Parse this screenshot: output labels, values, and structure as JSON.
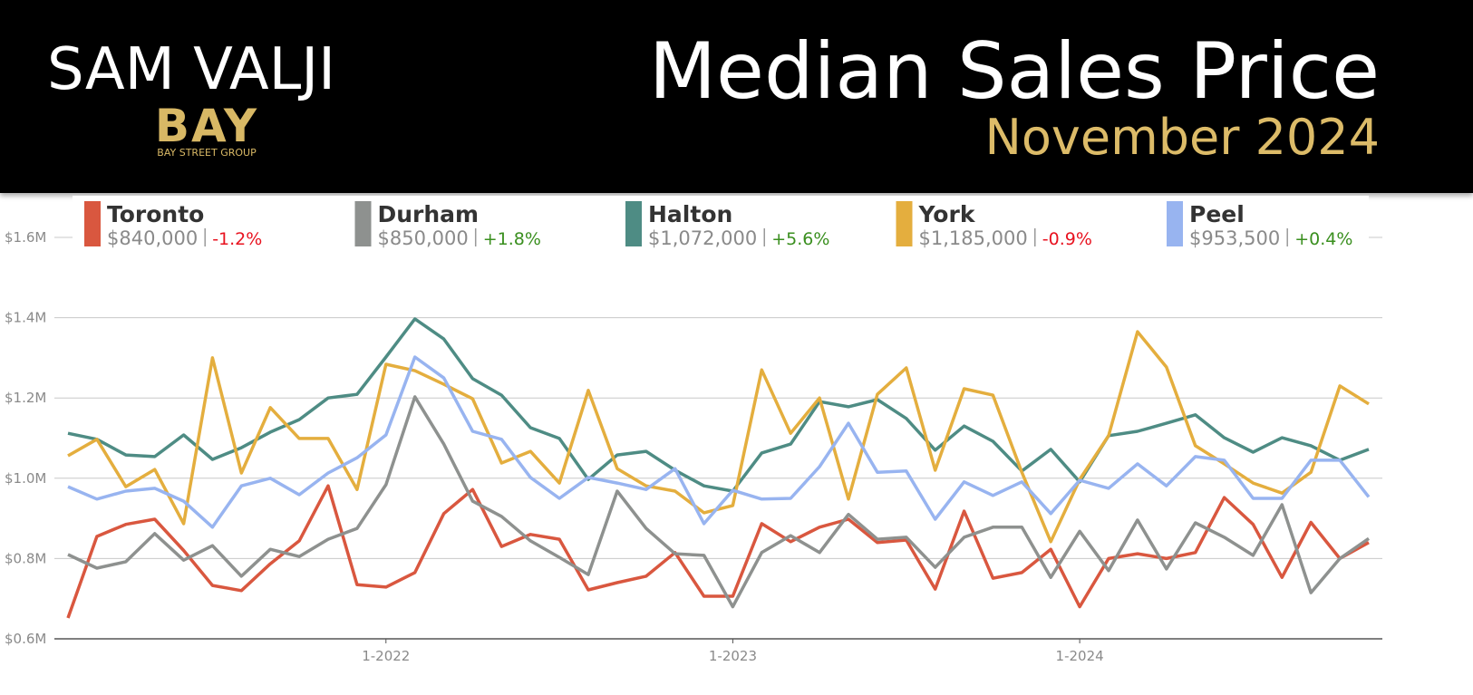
{
  "header": {
    "brand": "SAM VALJI",
    "logo": "BAY",
    "logo_tagline": "BAY STREET GROUP"
  },
  "chart_data": {
    "type": "line",
    "title": "Median Sales Price",
    "subtitle": "November 2024",
    "categories": [
      null,
      null,
      null,
      null,
      null,
      null,
      null,
      null,
      null,
      null,
      null,
      "1-2022",
      null,
      null,
      null,
      null,
      null,
      null,
      null,
      null,
      null,
      null,
      null,
      "1-2023",
      null,
      null,
      null,
      null,
      null,
      null,
      null,
      null,
      null,
      null,
      null,
      "1-2024",
      null,
      null,
      null,
      null,
      null,
      null,
      null,
      null,
      null,
      null
    ],
    "ylim": [
      600000,
      1600000
    ],
    "yticks": [
      {
        "value": 600000,
        "label": "$0.6M"
      },
      {
        "value": 800000,
        "label": "$0.8M"
      },
      {
        "value": 1000000,
        "label": "$1.0M"
      },
      {
        "value": 1200000,
        "label": "$1.2M"
      },
      {
        "value": 1400000,
        "label": "$1.4M"
      },
      {
        "value": 1600000,
        "label": "$1.6M"
      }
    ],
    "grid": true,
    "legend": "top",
    "series": [
      {
        "name": "Toronto",
        "color": "#d9573f",
        "price": "$840,000",
        "change": "-1.2%",
        "change_color": "#e8121f",
        "values": [
          652000,
          855000,
          885000,
          898000,
          820000,
          733000,
          720000,
          787000,
          844000,
          981000,
          735000,
          729000,
          765000,
          912000,
          972000,
          830000,
          860000,
          848000,
          722000,
          740000,
          756000,
          815000,
          706000,
          706000,
          887000,
          842000,
          878000,
          898000,
          840000,
          846000,
          724000,
          918000,
          751000,
          765000,
          823000,
          680000,
          800000,
          812000,
          800000,
          815000,
          952000,
          885000,
          753000,
          890000,
          800000,
          840000
        ]
      },
      {
        "name": "Durham",
        "color": "#8e918f",
        "price": "$850,000",
        "change": "+1.8%",
        "change_color": "#3a8f1f",
        "values": [
          810000,
          776000,
          792000,
          862000,
          796000,
          832000,
          756000,
          823000,
          805000,
          848000,
          875000,
          984000,
          1203000,
          1085000,
          943000,
          905000,
          844000,
          803000,
          760000,
          968000,
          875000,
          812000,
          808000,
          680000,
          815000,
          857000,
          815000,
          910000,
          848000,
          853000,
          778000,
          853000,
          878000,
          878000,
          753000,
          868000,
          770000,
          896000,
          774000,
          889000,
          853000,
          808000,
          934000,
          715000,
          800000,
          850000
        ]
      },
      {
        "name": "Halton",
        "color": "#4e8c84",
        "price": "$1,072,000",
        "change": "+5.6%",
        "change_color": "#3a8f1f",
        "values": [
          1112000,
          1097000,
          1058000,
          1054000,
          1108000,
          1047000,
          1076000,
          1115000,
          1146000,
          1200000,
          1209000,
          1302000,
          1397000,
          1347000,
          1248000,
          1207000,
          1126000,
          1099000,
          997000,
          1058000,
          1067000,
          1020000,
          981000,
          968000,
          1063000,
          1085000,
          1191000,
          1178000,
          1196000,
          1149000,
          1070000,
          1130000,
          1092000,
          1018000,
          1072000,
          991000,
          1106000,
          1117000,
          1137000,
          1158000,
          1101000,
          1065000,
          1101000,
          1081000,
          1045000,
          1072000
        ]
      },
      {
        "name": "York",
        "color": "#e4ae3e",
        "price": "$1,185,000",
        "change": "-0.9%",
        "change_color": "#e8121f",
        "values": [
          1056000,
          1097000,
          979000,
          1022000,
          887000,
          1300000,
          1013000,
          1176000,
          1099000,
          1099000,
          972000,
          1284000,
          1268000,
          1234000,
          1198000,
          1038000,
          1067000,
          988000,
          1219000,
          1024000,
          981000,
          968000,
          914000,
          932000,
          1270000,
          1112000,
          1200000,
          948000,
          1209000,
          1275000,
          1020000,
          1223000,
          1207000,
          1015000,
          842000,
          997000,
          1106000,
          1365000,
          1277000,
          1081000,
          1036000,
          988000,
          963000,
          1015000,
          1230000,
          1185000
        ]
      },
      {
        "name": "Peel",
        "color": "#98b4f0",
        "price": "$953,500",
        "change": "+0.4%",
        "change_color": "#3a8f1f",
        "values": [
          979000,
          948000,
          968000,
          975000,
          943000,
          878000,
          981000,
          1000000,
          959000,
          1013000,
          1051000,
          1108000,
          1302000,
          1250000,
          1117000,
          1097000,
          1002000,
          950000,
          1002000,
          988000,
          972000,
          1024000,
          887000,
          970000,
          948000,
          950000,
          1029000,
          1137000,
          1015000,
          1018000,
          898000,
          991000,
          957000,
          991000,
          912000,
          995000,
          975000,
          1036000,
          981000,
          1054000,
          1045000,
          950000,
          950000,
          1045000,
          1045000,
          953500
        ]
      }
    ]
  }
}
